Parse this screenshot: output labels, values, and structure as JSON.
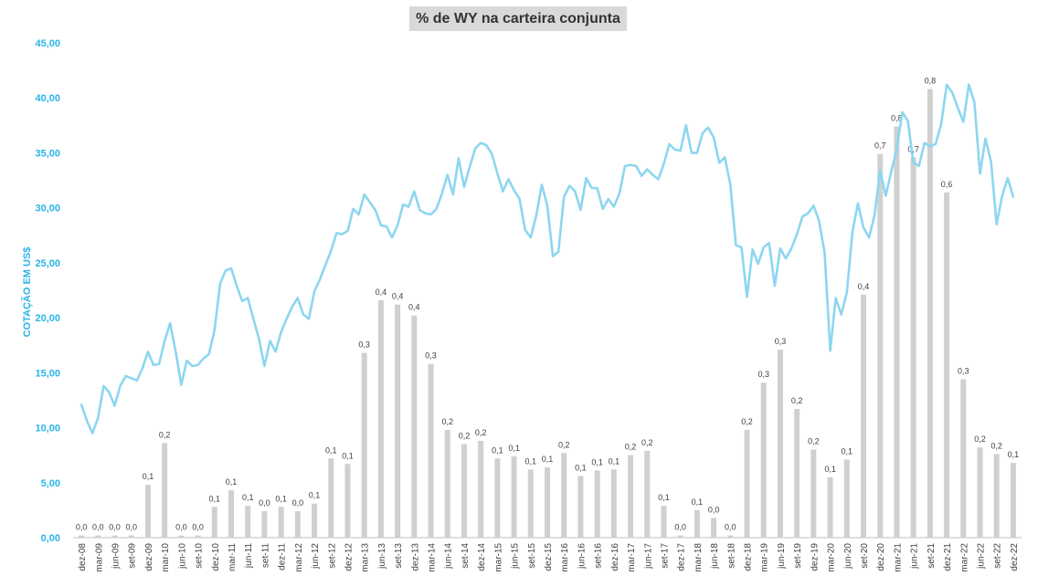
{
  "chart_data": {
    "type": "bar+line",
    "title": "% de WY na carteira conjunta",
    "ylabel": "COTAÇÃO EM US$",
    "ylim": [
      0,
      45
    ],
    "yticks": [
      "0,00",
      "5,00",
      "10,00",
      "15,00",
      "20,00",
      "25,00",
      "30,00",
      "35,00",
      "40,00",
      "45,00"
    ],
    "ytick_values": [
      0,
      5,
      10,
      15,
      20,
      25,
      30,
      35,
      40,
      45
    ],
    "x_tick_labels": [
      "dez-08",
      "mar-09",
      "jun-09",
      "set-09",
      "dez-09",
      "mar-10",
      "jun-10",
      "set-10",
      "dez-10",
      "mar-11",
      "jun-11",
      "set-11",
      "dez-11",
      "mar-12",
      "jun-12",
      "set-12",
      "dez-12",
      "mar-13",
      "jun-13",
      "set-13",
      "dez-13",
      "mar-14",
      "jun-14",
      "set-14",
      "dez-14",
      "mar-15",
      "jun-15",
      "set-15",
      "dez-15",
      "mar-16",
      "jun-16",
      "set-16",
      "dez-16",
      "mar-17",
      "jun-17",
      "set-17",
      "dez-17",
      "mar-18",
      "jun-18",
      "set-18",
      "dez-18",
      "mar-19",
      "jun-19",
      "set-19",
      "dez-19",
      "mar-20",
      "jun-20",
      "set-20",
      "dez-20",
      "mar-21",
      "jun-21",
      "set-21",
      "dez-21",
      "mar-22",
      "jun-22",
      "set-22",
      "dez-22"
    ],
    "bars": {
      "name": "% de WY na carteira conjunta",
      "color": "#d0d0d0",
      "heights": [
        0.2,
        0.2,
        0.2,
        0.2,
        4.8,
        8.6,
        0.2,
        0.2,
        2.8,
        4.3,
        2.9,
        2.4,
        2.8,
        2.4,
        3.1,
        7.2,
        6.7,
        16.8,
        21.6,
        21.2,
        20.2,
        15.8,
        9.8,
        8.5,
        8.8,
        7.2,
        7.4,
        6.2,
        6.4,
        7.7,
        5.6,
        6.1,
        6.2,
        7.5,
        7.9,
        2.9,
        0.2,
        2.5,
        1.8,
        0.2,
        9.8,
        14.1,
        17.1,
        11.7,
        8.0,
        5.5,
        7.1,
        22.1,
        34.9,
        37.4,
        34.6,
        40.8,
        31.4,
        14.4,
        8.2,
        7.6,
        6.8
      ],
      "labels": [
        "0,0",
        "0,0",
        "0,0",
        "0,0",
        "0,1",
        "0,2",
        "0,0",
        "0,0",
        "0,1",
        "0,1",
        "0,1",
        "0,0",
        "0,1",
        "0,0",
        "0,1",
        "0,1",
        "0,1",
        "0,3",
        "0,4",
        "0,4",
        "0,4",
        "0,3",
        "0,2",
        "0,2",
        "0,2",
        "0,1",
        "0,1",
        "0,1",
        "0,1",
        "0,2",
        "0,1",
        "0,1",
        "0,1",
        "0,2",
        "0,2",
        "0,1",
        "0,0",
        "0,1",
        "0,0",
        "0,0",
        "0,2",
        "0,3",
        "0,3",
        "0,2",
        "0,2",
        "0,1",
        "0,1",
        "0,4",
        "0,7",
        "0,8",
        "0,7",
        "0,8",
        "0,6",
        "0,3",
        "0,2",
        "0,2",
        "0,1"
      ]
    },
    "line": {
      "name": "Cotação (US$)",
      "color": "#8dd6f0",
      "x_start": "dez-08",
      "step": "month",
      "values": [
        12.1,
        10.6,
        9.5,
        10.9,
        13.8,
        13.2,
        12.0,
        13.8,
        14.7,
        14.5,
        14.3,
        15.4,
        16.9,
        15.7,
        15.8,
        17.9,
        19.5,
        16.9,
        13.9,
        16.1,
        15.6,
        15.7,
        16.3,
        16.7,
        18.9,
        23.1,
        24.3,
        24.5,
        22.9,
        21.5,
        21.8,
        19.9,
        18.1,
        15.6,
        17.9,
        16.9,
        18.7,
        19.9,
        21.0,
        21.8,
        20.3,
        19.9,
        22.4,
        23.5,
        24.8,
        26.1,
        27.7,
        27.6,
        27.9,
        29.9,
        29.4,
        31.2,
        30.5,
        29.8,
        28.4,
        28.3,
        27.3,
        28.4,
        30.3,
        30.1,
        31.5,
        29.8,
        29.5,
        29.4,
        29.9,
        31.3,
        33.0,
        31.2,
        34.5,
        31.9,
        33.7,
        35.4,
        35.9,
        35.7,
        34.9,
        33.1,
        31.5,
        32.6,
        31.6,
        30.8,
        28.0,
        27.3,
        29.3,
        32.1,
        30.2,
        25.6,
        26.0,
        31.0,
        32.0,
        31.5,
        29.8,
        32.7,
        31.8,
        31.8,
        29.9,
        30.8,
        30.1,
        31.3,
        33.8,
        33.9,
        33.8,
        32.9,
        33.5,
        33.0,
        32.6,
        34.0,
        35.8,
        35.3,
        35.2,
        37.5,
        35.0,
        35.0,
        36.8,
        37.3,
        36.4,
        34.1,
        34.6,
        32.1,
        26.6,
        26.4,
        21.9,
        26.2,
        24.9,
        26.4,
        26.8,
        22.9,
        26.3,
        25.4,
        26.3,
        27.6,
        29.2,
        29.5,
        30.2,
        28.8,
        25.9,
        17.0,
        21.8,
        20.3,
        22.3,
        27.8,
        30.4,
        28.2,
        27.3,
        29.3,
        33.4,
        31.1,
        33.3,
        35.3,
        38.7,
        37.9,
        34.1,
        33.8,
        35.9,
        35.6,
        35.8,
        37.6,
        41.2,
        40.5,
        39.1,
        37.8,
        41.2,
        39.6,
        33.1,
        36.3,
        34.2,
        28.5,
        31.1,
        32.7,
        31.0
      ]
    },
    "grid": false,
    "legend": "none"
  }
}
